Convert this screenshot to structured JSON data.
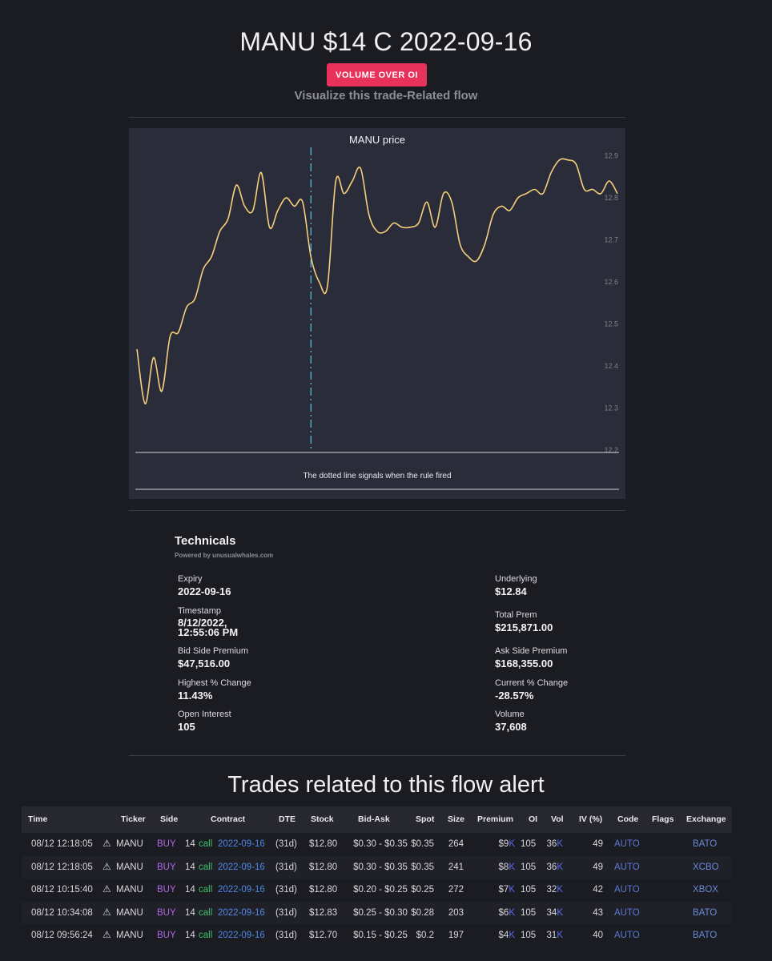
{
  "header": {
    "title": "MANU $14 C 2022-09-16",
    "rule_badge": "VOLUME OVER OI",
    "subtitle": "Visualize this trade-Related flow"
  },
  "chart_data": {
    "type": "line",
    "title": "MANU price",
    "footer_note": "The dotted line signals when the rule fired",
    "y_ticks": [
      "12.9",
      "12.8",
      "12.7",
      "12.6",
      "12.5",
      "12.4",
      "12.3",
      "12.2"
    ],
    "ylim": [
      12.2,
      12.92
    ],
    "series": [
      {
        "color": "#f6cf7a",
        "values": [
          12.44,
          12.31,
          12.42,
          12.34,
          12.47,
          12.48,
          12.54,
          12.56,
          12.63,
          12.66,
          12.72,
          12.75,
          12.83,
          12.78,
          12.77,
          12.86,
          12.73,
          12.77,
          12.8,
          12.78,
          12.79,
          12.66,
          12.6,
          12.59,
          12.84,
          12.81,
          12.84,
          12.87,
          12.76,
          12.72,
          12.72,
          12.74,
          12.73,
          12.73,
          12.74,
          12.79,
          12.73,
          12.81,
          12.79,
          12.69,
          12.66,
          12.65,
          12.69,
          12.76,
          12.78,
          12.77,
          12.8,
          12.81,
          12.82,
          12.81,
          12.86,
          12.89,
          12.89,
          12.88,
          12.82,
          12.82,
          12.81,
          12.84,
          12.81
        ]
      }
    ],
    "rule_fired_index": 21,
    "rule_line_color": "#5cc8e8",
    "grid": false
  },
  "technicals": {
    "title": "Technicals",
    "powered_by": "Powered by unusualwhales.com",
    "expiry_label": "Expiry",
    "expiry": "2022-09-16",
    "underlying_label": "Underlying",
    "underlying": "$12.84",
    "timestamp_label": "Timestamp",
    "timestamp_line1": "8/12/2022,",
    "timestamp_line2": "12:55:06 PM",
    "total_prem_label": "Total Prem",
    "total_prem": "$215,871.00",
    "bid_prem_label": "Bid Side Premium",
    "bid_prem": "$47,516.00",
    "ask_prem_label": "Ask Side Premium",
    "ask_prem": "$168,355.00",
    "highest_change_label": "Highest % Change",
    "highest_change": "11.43%",
    "current_change_label": "Current % Change",
    "current_change": "-28.57%",
    "oi_label": "Open Interest",
    "oi": "105",
    "volume_label": "Volume",
    "volume": "37,608"
  },
  "trades": {
    "title": "Trades related to this flow alert",
    "headers": {
      "time": "Time",
      "ticker": "Ticker",
      "side": "Side",
      "contract": "Contract",
      "dte": "DTE",
      "stock": "Stock",
      "bid_ask": "Bid-Ask",
      "spot": "Spot",
      "size": "Size",
      "premium": "Premium",
      "oi": "OI",
      "vol": "Vol",
      "iv": "IV (%)",
      "code": "Code",
      "flags": "Flags",
      "exchange": "Exchange"
    },
    "rows": [
      {
        "time": "08/12 12:18:05",
        "ticker": "MANU",
        "side": "BUY",
        "strike": "14",
        "type": "call",
        "expiry": "2022-09-16",
        "dte": "(31d)",
        "stock": "$12.80",
        "bid_ask": "$0.30 - $0.35",
        "spot": "$0.35",
        "size": "264",
        "premium_num": "$9",
        "premium_unit": "K",
        "oi": "105",
        "vol_num": "36",
        "vol_unit": "K",
        "iv": "49",
        "code": "AUTO",
        "exchange": "BATO"
      },
      {
        "time": "08/12 12:18:05",
        "ticker": "MANU",
        "side": "BUY",
        "strike": "14",
        "type": "call",
        "expiry": "2022-09-16",
        "dte": "(31d)",
        "stock": "$12.80",
        "bid_ask": "$0.30 - $0.35",
        "spot": "$0.35",
        "size": "241",
        "premium_num": "$8",
        "premium_unit": "K",
        "oi": "105",
        "vol_num": "36",
        "vol_unit": "K",
        "iv": "49",
        "code": "AUTO",
        "exchange": "XCBO"
      },
      {
        "time": "08/12 10:15:40",
        "ticker": "MANU",
        "side": "BUY",
        "strike": "14",
        "type": "call",
        "expiry": "2022-09-16",
        "dte": "(31d)",
        "stock": "$12.80",
        "bid_ask": "$0.20 - $0.25",
        "spot": "$0.25",
        "size": "272",
        "premium_num": "$7",
        "premium_unit": "K",
        "oi": "105",
        "vol_num": "32",
        "vol_unit": "K",
        "iv": "42",
        "code": "AUTO",
        "exchange": "XBOX"
      },
      {
        "time": "08/12 10:34:08",
        "ticker": "MANU",
        "side": "BUY",
        "strike": "14",
        "type": "call",
        "expiry": "2022-09-16",
        "dte": "(31d)",
        "stock": "$12.83",
        "bid_ask": "$0.25 - $0.30",
        "spot": "$0.28",
        "size": "203",
        "premium_num": "$6",
        "premium_unit": "K",
        "oi": "105",
        "vol_num": "34",
        "vol_unit": "K",
        "iv": "43",
        "code": "AUTO",
        "exchange": "BATO"
      },
      {
        "time": "08/12 09:56:24",
        "ticker": "MANU",
        "side": "BUY",
        "strike": "14",
        "type": "call",
        "expiry": "2022-09-16",
        "dte": "(31d)",
        "stock": "$12.70",
        "bid_ask": "$0.15 - $0.25",
        "spot": "$0.2",
        "size": "197",
        "premium_num": "$4",
        "premium_unit": "K",
        "oi": "105",
        "vol_num": "31",
        "vol_unit": "K",
        "iv": "40",
        "code": "AUTO",
        "exchange": "BATO"
      }
    ],
    "warning_icon": "warning-triangle-icon"
  }
}
